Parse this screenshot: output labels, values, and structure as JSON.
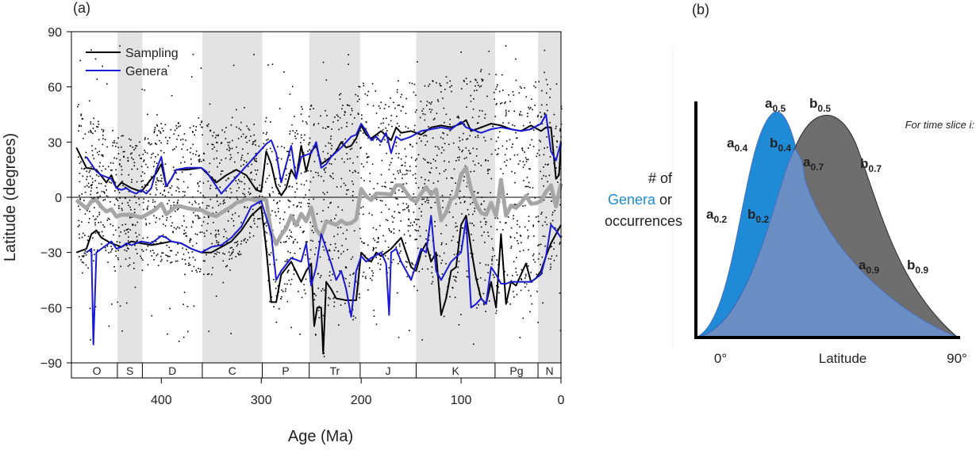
{
  "chart_data": [
    {
      "panel_label": "(a)",
      "type": "line",
      "xlabel": "Age (Ma)",
      "ylabel": "Latitude (degrees)",
      "xlim": [
        490,
        0
      ],
      "ylim": [
        -90,
        90
      ],
      "x_ticks": [
        400,
        300,
        200,
        100,
        0
      ],
      "y_ticks": [
        90,
        60,
        30,
        0,
        -30,
        -60,
        -90
      ],
      "legend": {
        "placement": "top-left",
        "items": [
          "Sampling",
          "Genera"
        ]
      },
      "colors": {
        "sampling": "#000000",
        "genera": "#1a1ad6",
        "median": "#a6a6a6",
        "shade": "#e3e3e3"
      },
      "periods": [
        {
          "label": "O",
          "start": 485,
          "end": 444,
          "shaded": false
        },
        {
          "label": "S",
          "start": 444,
          "end": 419,
          "shaded": true
        },
        {
          "label": "D",
          "start": 419,
          "end": 359,
          "shaded": false
        },
        {
          "label": "C",
          "start": 359,
          "end": 299,
          "shaded": true
        },
        {
          "label": "P",
          "start": 299,
          "end": 252,
          "shaded": false
        },
        {
          "label": "Tr",
          "start": 252,
          "end": 201,
          "shaded": true
        },
        {
          "label": "J",
          "start": 201,
          "end": 145,
          "shaded": false
        },
        {
          "label": "K",
          "start": 145,
          "end": 66,
          "shaded": true
        },
        {
          "label": "Pg",
          "start": 66,
          "end": 23,
          "shaded": false
        },
        {
          "label": "N",
          "start": 23,
          "end": 0,
          "shaded": true
        }
      ],
      "series": [
        {
          "name": "Sampling",
          "bound": "upper",
          "x": [
            485,
            475,
            465,
            455,
            450,
            445,
            440,
            430,
            420,
            410,
            405,
            400,
            395,
            390,
            385,
            375,
            360,
            345,
            335,
            325,
            315,
            305,
            300,
            295,
            290,
            285,
            280,
            275,
            270,
            265,
            260,
            255,
            250,
            245,
            240,
            235,
            230,
            225,
            220,
            215,
            210,
            205,
            200,
            195,
            190,
            180,
            170,
            165,
            160,
            150,
            140,
            130,
            120,
            110,
            100,
            95,
            90,
            80,
            70,
            60,
            50,
            40,
            30,
            20,
            15,
            10,
            5,
            2,
            0
          ],
          "y": [
            27,
            16,
            15,
            8,
            12,
            5,
            8,
            5,
            3,
            10,
            13,
            18,
            6,
            10,
            15,
            15,
            16,
            8,
            12,
            15,
            12,
            4,
            3,
            25,
            18,
            6,
            1,
            5,
            15,
            10,
            28,
            14,
            25,
            28,
            18,
            20,
            22,
            25,
            30,
            27,
            28,
            32,
            39,
            34,
            32,
            36,
            31,
            38,
            35,
            36,
            34,
            38,
            39,
            38,
            40,
            42,
            36,
            38,
            40,
            39,
            37,
            36,
            39,
            36,
            38,
            38,
            10,
            12,
            30
          ]
        },
        {
          "name": "Sampling",
          "bound": "lower",
          "x": [
            485,
            475,
            470,
            465,
            460,
            450,
            440,
            430,
            420,
            410,
            400,
            390,
            380,
            370,
            360,
            350,
            340,
            330,
            320,
            310,
            300,
            295,
            290,
            285,
            280,
            270,
            260,
            255,
            250,
            247,
            244,
            240,
            238,
            235,
            230,
            225,
            215,
            210,
            205,
            200,
            195,
            190,
            185,
            180,
            175,
            170,
            165,
            160,
            155,
            150,
            145,
            140,
            135,
            130,
            125,
            120,
            115,
            110,
            105,
            100,
            95,
            90,
            85,
            80,
            75,
            70,
            65,
            60,
            55,
            50,
            45,
            40,
            35,
            30,
            25,
            20,
            15,
            10,
            5,
            0
          ],
          "y": [
            -30,
            -28,
            -20,
            -18,
            -22,
            -25,
            -27,
            -24,
            -25,
            -26,
            -25,
            -24,
            -25,
            -28,
            -30,
            -30,
            -27,
            -24,
            -18,
            -10,
            -5,
            -28,
            -57,
            -57,
            -42,
            -35,
            -46,
            -40,
            -36,
            -70,
            -60,
            -60,
            -85,
            -46,
            -50,
            -55,
            -56,
            -56,
            -56,
            -30,
            -33,
            -35,
            -30,
            -32,
            -30,
            -28,
            -25,
            -22,
            -30,
            -38,
            -40,
            -30,
            -25,
            -35,
            -30,
            -64,
            -55,
            -40,
            -38,
            -15,
            -10,
            -28,
            -44,
            -55,
            -58,
            -46,
            -60,
            -20,
            -58,
            -46,
            -48,
            -42,
            -36,
            -46,
            -44,
            -40,
            -32,
            -25,
            -20,
            -15
          ]
        },
        {
          "name": "Genera",
          "bound": "upper",
          "x": [
            475,
            470,
            465,
            460,
            450,
            445,
            440,
            435,
            430,
            425,
            420,
            415,
            410,
            405,
            400,
            395,
            390,
            385,
            375,
            360,
            355,
            350,
            340,
            295,
            290,
            285,
            280,
            275,
            270,
            265,
            260,
            255,
            250,
            245,
            240,
            235,
            230,
            220,
            215,
            210,
            205,
            200,
            195,
            190,
            185,
            180,
            175,
            170,
            165,
            160,
            150,
            140,
            130,
            120,
            110,
            100,
            95,
            90,
            80,
            70,
            60,
            50,
            40,
            30,
            20,
            15,
            10,
            5,
            0
          ],
          "y": [
            22,
            18,
            14,
            12,
            10,
            5,
            4,
            5,
            3,
            2,
            4,
            2,
            5,
            15,
            22,
            6,
            10,
            15,
            16,
            16,
            14,
            10,
            2,
            29,
            31,
            24,
            8,
            18,
            28,
            10,
            22,
            23,
            24,
            30,
            16,
            18,
            22,
            27,
            30,
            33,
            34,
            40,
            36,
            31,
            33,
            30,
            35,
            24,
            33,
            31,
            33,
            36,
            37,
            38,
            37,
            41,
            38,
            37,
            35,
            37,
            38,
            37,
            36,
            37,
            40,
            45,
            25,
            20,
            30
          ]
        },
        {
          "name": "Genera",
          "bound": "lower",
          "x": [
            475,
            470,
            468,
            465,
            460,
            455,
            450,
            445,
            440,
            435,
            430,
            420,
            410,
            400,
            395,
            390,
            380,
            370,
            360,
            350,
            340,
            330,
            320,
            310,
            300,
            290,
            285,
            280,
            270,
            260,
            255,
            250,
            245,
            240,
            230,
            225,
            220,
            215,
            210,
            205,
            200,
            195,
            190,
            180,
            175,
            172,
            170,
            165,
            160,
            150,
            140,
            135,
            130,
            125,
            120,
            110,
            100,
            95,
            90,
            85,
            80,
            75,
            70,
            65,
            60,
            55,
            50,
            40,
            30,
            20,
            15,
            10,
            5,
            0
          ],
          "y": [
            -30,
            -28,
            -80,
            -30,
            -28,
            -26,
            -24,
            -28,
            -27,
            -25,
            -26,
            -24,
            -25,
            -21,
            -22,
            -24,
            -25,
            -28,
            -30,
            -27,
            -26,
            -22,
            -16,
            -5,
            -2,
            -20,
            -45,
            -40,
            -33,
            -35,
            -25,
            -48,
            -38,
            -20,
            -36,
            -45,
            -40,
            -50,
            -65,
            -40,
            -32,
            -35,
            -33,
            -30,
            -36,
            -64,
            -30,
            -28,
            -35,
            -45,
            -28,
            -30,
            -10,
            -40,
            -45,
            -35,
            -30,
            -12,
            -60,
            -58,
            -55,
            -58,
            -38,
            -42,
            -47,
            -47,
            -46,
            -46,
            -46,
            -42,
            -32,
            -15,
            -18,
            -22
          ]
        }
      ]
    },
    {
      "panel_label": "(b)",
      "type": "area",
      "xlabel": "Latitude",
      "ylabel_line1": "# of",
      "ylabel_genera": "Genera",
      "ylabel_or": "or",
      "ylabel_line3": "occurrences",
      "note": "For time slice i:",
      "x_ticks": [
        "0°",
        "90°"
      ],
      "colors": {
        "genera": "#1f8ad6",
        "occurrences": "#6e6e6e",
        "overlap": "#6b8fc4"
      },
      "labels_a": [
        {
          "base": "a",
          "sub": "0.5"
        },
        {
          "base": "a",
          "sub": "0.4"
        },
        {
          "base": "a",
          "sub": "0.7"
        },
        {
          "base": "a",
          "sub": "0.2"
        },
        {
          "base": "a",
          "sub": "0.9"
        }
      ],
      "labels_b": [
        {
          "base": "b",
          "sub": "0.5"
        },
        {
          "base": "b",
          "sub": "0.4"
        },
        {
          "base": "b",
          "sub": "0.7"
        },
        {
          "base": "b",
          "sub": "0.2"
        },
        {
          "base": "b",
          "sub": "0.9"
        }
      ]
    }
  ]
}
